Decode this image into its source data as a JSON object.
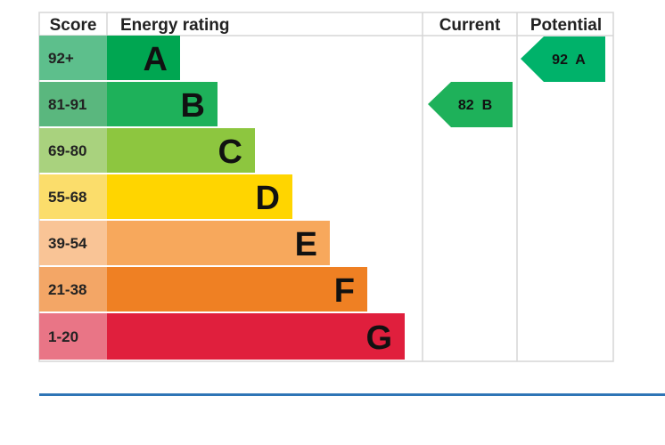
{
  "chart_data": {
    "type": "table",
    "headers": {
      "score": "Score",
      "rating": "Energy rating",
      "current": "Current",
      "potential": "Potential"
    },
    "bands": [
      {
        "score": "92+",
        "letter": "A",
        "color": "#00a651",
        "score_bg": "#5dbf8c"
      },
      {
        "score": "81-91",
        "letter": "B",
        "color": "#1eb15a",
        "score_bg": "#5ab77e"
      },
      {
        "score": "69-80",
        "letter": "C",
        "color": "#8dc63f",
        "score_bg": "#a9d27e"
      },
      {
        "score": "55-68",
        "letter": "D",
        "color": "#ffd500",
        "score_bg": "#fbdd6b"
      },
      {
        "score": "39-54",
        "letter": "E",
        "color": "#f7a85c",
        "score_bg": "#f9c496"
      },
      {
        "score": "21-38",
        "letter": "F",
        "color": "#ef8023",
        "score_bg": "#f3a666"
      },
      {
        "score": "1-20",
        "letter": "G",
        "color": "#e01f3d",
        "score_bg": "#e97586"
      }
    ],
    "current": {
      "value": 82,
      "letter": "B",
      "label": "82  B",
      "color": "#1eb15a"
    },
    "potential": {
      "value": 92,
      "letter": "A",
      "label": "92  A",
      "color": "#00b26a"
    }
  },
  "colors": {
    "grid": "#d6d6d6",
    "rule": "#2e75b6"
  }
}
